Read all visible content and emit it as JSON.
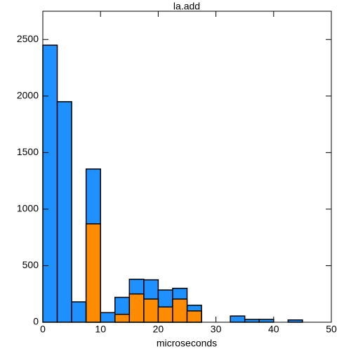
{
  "chart_data": {
    "type": "histogram",
    "title": "la.add",
    "x_label": "microseconds",
    "bins": [
      0,
      2.5,
      5,
      7.5,
      10,
      12.5,
      15,
      17.5,
      20,
      22.5,
      25,
      27.5,
      30,
      32.5,
      35,
      37.5,
      40,
      42.5,
      45,
      47.5,
      50
    ],
    "series": [
      {
        "color": "#1e90ff",
        "values": [
          2450,
          1950,
          180,
          1355,
          85,
          220,
          380,
          375,
          285,
          300,
          150,
          0,
          0,
          55,
          25,
          25,
          0,
          20,
          0,
          0
        ]
      },
      {
        "color": "#ff8c00",
        "values": [
          0,
          0,
          0,
          870,
          0,
          70,
          250,
          205,
          135,
          205,
          100,
          0,
          0,
          0,
          0,
          0,
          0,
          0,
          0,
          0
        ]
      }
    ],
    "xlim": [
      0,
      50
    ],
    "xticks": [
      0,
      10,
      20,
      30,
      40,
      50
    ],
    "ylim": [
      0,
      2750
    ],
    "yticks": [
      0,
      500,
      1000,
      1500,
      2000,
      2500
    ]
  }
}
